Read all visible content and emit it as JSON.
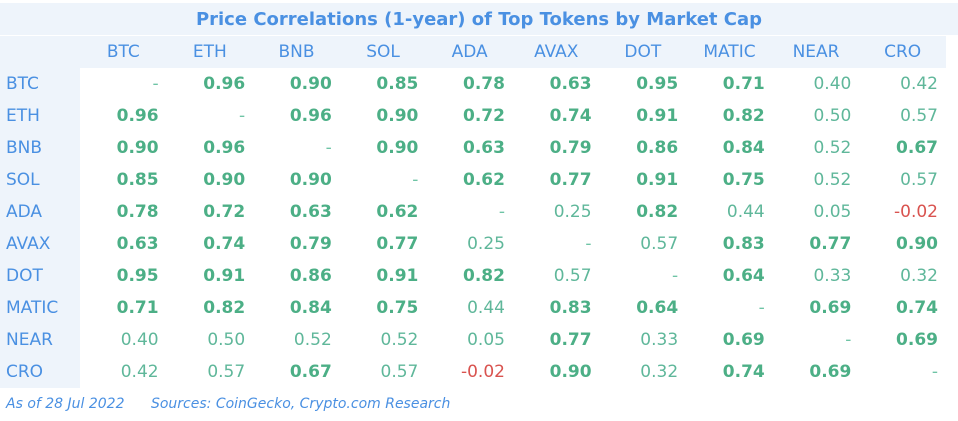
{
  "title": "Price Correlations (1-year) of Top Tokens by Market Cap",
  "footer": {
    "date": "As of 28 Jul 2022",
    "sources": "Sources: CoinGecko, Crypto.com Research"
  },
  "colors": {
    "header_bg": "#eef4fb",
    "header_text": "#4a90e2",
    "value_text": "#5fb79a",
    "strong_text": "#4caf86",
    "negative_text": "#d9534f"
  },
  "chart_data": {
    "type": "heatmap",
    "title": "Price Correlations (1-year) of Top Tokens by Market Cap",
    "tokens": [
      "BTC",
      "ETH",
      "BNB",
      "SOL",
      "ADA",
      "AVAX",
      "DOT",
      "MATIC",
      "NEAR",
      "CRO"
    ],
    "matrix": [
      [
        "-",
        "0.96",
        "0.90",
        "0.85",
        "0.78",
        "0.63",
        "0.95",
        "0.71",
        "0.40",
        "0.42"
      ],
      [
        "0.96",
        "-",
        "0.96",
        "0.90",
        "0.72",
        "0.74",
        "0.91",
        "0.82",
        "0.50",
        "0.57"
      ],
      [
        "0.90",
        "0.96",
        "-",
        "0.90",
        "0.63",
        "0.79",
        "0.86",
        "0.84",
        "0.52",
        "0.67"
      ],
      [
        "0.85",
        "0.90",
        "0.90",
        "-",
        "0.62",
        "0.77",
        "0.91",
        "0.75",
        "0.52",
        "0.57"
      ],
      [
        "0.78",
        "0.72",
        "0.63",
        "0.62",
        "-",
        "0.25",
        "0.82",
        "0.44",
        "0.05",
        "-0.02"
      ],
      [
        "0.63",
        "0.74",
        "0.79",
        "0.77",
        "0.25",
        "-",
        "0.57",
        "0.83",
        "0.77",
        "0.90"
      ],
      [
        "0.95",
        "0.91",
        "0.86",
        "0.91",
        "0.82",
        "0.57",
        "-",
        "0.64",
        "0.33",
        "0.32"
      ],
      [
        "0.71",
        "0.82",
        "0.84",
        "0.75",
        "0.44",
        "0.83",
        "0.64",
        "-",
        "0.69",
        "0.74"
      ],
      [
        "0.40",
        "0.50",
        "0.52",
        "0.52",
        "0.05",
        "0.77",
        "0.33",
        "0.69",
        "-",
        "0.69"
      ],
      [
        "0.42",
        "0.57",
        "0.67",
        "0.57",
        "-0.02",
        "0.90",
        "0.32",
        "0.74",
        "0.69",
        "-"
      ]
    ],
    "bold_threshold": 0.6
  }
}
